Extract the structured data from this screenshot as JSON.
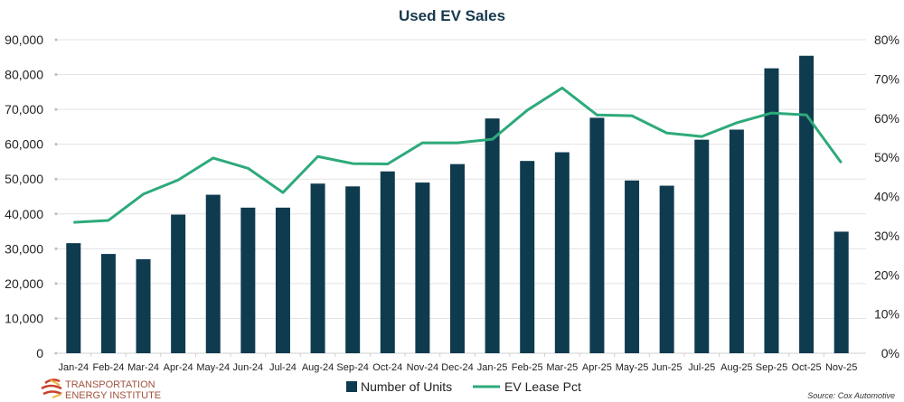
{
  "chart_data": {
    "type": "bar+line",
    "title": "Used EV Sales",
    "categories": [
      "Jan-24",
      "Feb-24",
      "Mar-24",
      "Apr-24",
      "May-24",
      "Jun-24",
      "Jul-24",
      "Aug-24",
      "Sep-24",
      "Oct-24",
      "Nov-24",
      "Dec-24",
      "Jan-25",
      "Feb-25",
      "Mar-25",
      "Apr-25",
      "May-25",
      "Jun-25",
      "Jul-25",
      "Aug-25",
      "Sep-25",
      "Oct-25",
      "Nov-25"
    ],
    "series": [
      {
        "name": "Number of Units",
        "type": "bar",
        "axis": "left",
        "color": "#0f3b4f",
        "values": [
          31600,
          28500,
          27000,
          39800,
          45500,
          41800,
          41800,
          48700,
          47900,
          52200,
          49000,
          54300,
          67400,
          55200,
          57700,
          67600,
          49600,
          48100,
          61300,
          64200,
          81800,
          85400,
          34900
        ]
      },
      {
        "name": "EV Lease Pct",
        "type": "line",
        "axis": "right",
        "color": "#2eaa7a",
        "values": [
          33.4,
          33.9,
          40.6,
          44.2,
          49.8,
          47.2,
          41.0,
          50.2,
          48.4,
          48.3,
          53.7,
          53.7,
          54.6,
          62.0,
          67.7,
          60.8,
          60.6,
          56.2,
          55.3,
          58.8,
          61.3,
          60.8,
          48.6
        ]
      }
    ],
    "ylim_left": [
      0,
      90000
    ],
    "yticks_left": [
      "0",
      "10,000",
      "20,000",
      "30,000",
      "40,000",
      "50,000",
      "60,000",
      "70,000",
      "80,000",
      "90,000"
    ],
    "ylim_right": [
      0,
      80
    ],
    "yticks_right": [
      "0%",
      "10%",
      "20%",
      "30%",
      "40%",
      "50%",
      "60%",
      "70%",
      "80%"
    ],
    "grid": true,
    "legend_placement": "bottom-center"
  },
  "logo": {
    "line1": "TRANSPORTATION",
    "line2": "ENERGY INSTITUTE"
  },
  "source": "Source:  Cox Automotive"
}
